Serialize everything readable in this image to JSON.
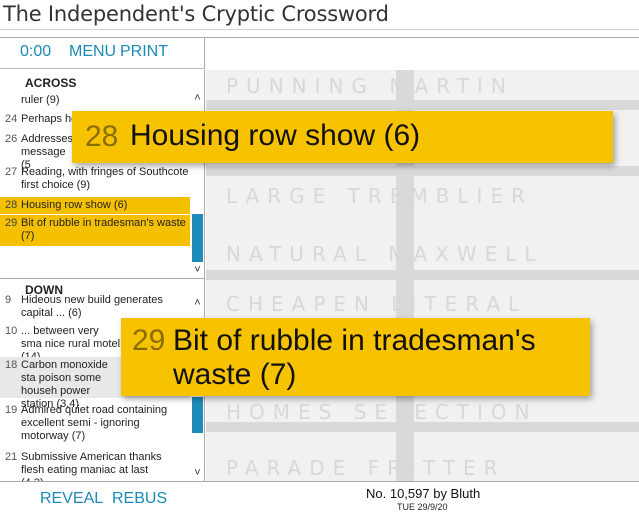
{
  "page_title": "The Independent's Cryptic Crossword",
  "toolbar": {
    "timer": "0:00",
    "menu": "MENU",
    "print": "PRINT"
  },
  "across": {
    "heading": "ACROSS",
    "clues": [
      {
        "num": "",
        "text": "ruler (9)"
      },
      {
        "num": "24",
        "text": "Perhaps ho"
      },
      {
        "num": "26",
        "text": "Addresses message (5"
      },
      {
        "num": "27",
        "text": "Reading, with fringes of Southcote first choice (9)"
      },
      {
        "num": "28",
        "text": "Housing row show (6)"
      },
      {
        "num": "29",
        "text": "Bit of rubble in tradesman's waste (7)"
      }
    ]
  },
  "down": {
    "heading": "DOWN",
    "clues": [
      {
        "num": "9",
        "text": "Hideous new build generates capital ... (6)"
      },
      {
        "num": "10",
        "text": "... between very sma nice rural motel (14)"
      },
      {
        "num": "18",
        "text": "Carbon monoxide sta poison some househ power station (3,4)"
      },
      {
        "num": "19",
        "text": "Admired quiet road containing excellent semi - ignoring motorway (7)"
      },
      {
        "num": "21",
        "text": "Submissive American thanks flesh eating maniac at last (4,3)"
      }
    ]
  },
  "popup_across": {
    "num": "28",
    "text": "Housing row show (6)"
  },
  "popup_down": {
    "num": "29",
    "text": "Bit of rubble in tradesman's waste (7)"
  },
  "grid_rows": [
    {
      "letters": "PUNNING MARTIN"
    },
    {
      "letters": "LARGE TREMBLIER"
    },
    {
      "letters": "NATURAL MAXWELL"
    },
    {
      "letters": "CHEAPEN LITERAL"
    },
    {
      "letters": "HOMES SELECTION"
    },
    {
      "letters": "PARADE FRITTER"
    }
  ],
  "bottom": {
    "reveal": "REVEAL",
    "rebus": "REBUS",
    "puzzle_no": "No. 10,597 by Bluth",
    "date": "TUE 29/9/20"
  },
  "colors": {
    "accent": "#1a8bb5",
    "highlight": "#f5c000",
    "popup": "#f7c200"
  }
}
